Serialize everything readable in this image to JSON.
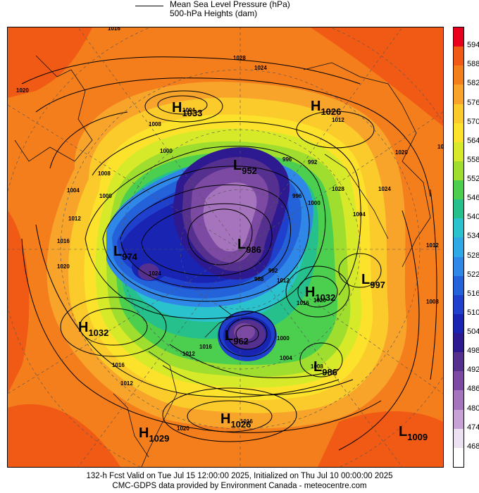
{
  "legend": {
    "line_label": "Mean Sea Level Pressure (hPa)",
    "fill_label": "500-hPa Heights (dam)"
  },
  "colorbar": {
    "levels": [
      "594",
      "588",
      "582",
      "576",
      "570",
      "564",
      "558",
      "552",
      "546",
      "540",
      "534",
      "528",
      "522",
      "516",
      "510",
      "504",
      "498",
      "492",
      "486",
      "480",
      "474",
      "468"
    ],
    "colors": [
      "#e8001c",
      "#f05a14",
      "#f47d1c",
      "#f8a42a",
      "#fbcb2c",
      "#fde22c",
      "#d7ea29",
      "#9fde2e",
      "#4ccf4e",
      "#25c08c",
      "#2ac2cc",
      "#2fa8e6",
      "#2f87e8",
      "#2462da",
      "#1f40cc",
      "#1925b2",
      "#2e1a90",
      "#56308f",
      "#7d4aa3",
      "#a673bd",
      "#c6a2d6",
      "#ece1f0",
      "#ffffff"
    ]
  },
  "pressure_centers": [
    {
      "type": "H",
      "value": "1033"
    },
    {
      "type": "H",
      "value": "1026"
    },
    {
      "type": "L",
      "value": "952"
    },
    {
      "type": "L",
      "value": "974"
    },
    {
      "type": "L",
      "value": "986"
    },
    {
      "type": "H",
      "value": "1032"
    },
    {
      "type": "L",
      "value": "997"
    },
    {
      "type": "H",
      "value": "1032"
    },
    {
      "type": "L",
      "value": "962"
    },
    {
      "type": "L",
      "value": "986"
    },
    {
      "type": "H",
      "value": "1026"
    },
    {
      "type": "H",
      "value": "1029"
    },
    {
      "type": "L",
      "value": "1009"
    }
  ],
  "isobar_labels": [
    "1020",
    "1016",
    "1012",
    "1016",
    "1020",
    "1028",
    "1024",
    "1012",
    "1008",
    "1004",
    "1000",
    "996",
    "992",
    "1008",
    "1004",
    "1000",
    "1012",
    "1016",
    "1020",
    "1024",
    "1028",
    "1024",
    "1020",
    "1016",
    "1012",
    "1008",
    "1004",
    "1000",
    "996",
    "992",
    "988",
    "1000",
    "1004",
    "1008",
    "1012",
    "1016",
    "1020",
    "1016",
    "1012",
    "1016",
    "1012",
    "1020",
    "1016"
  ],
  "footer": {
    "line1": "132-h Fcst Valid on Tue Jul 15 12:00:00 2025, Initialized on Thu Jul 10 00:00:00 2025",
    "line2": "CMC-GDPS data provided by Environment Canada - meteocentre.com"
  }
}
